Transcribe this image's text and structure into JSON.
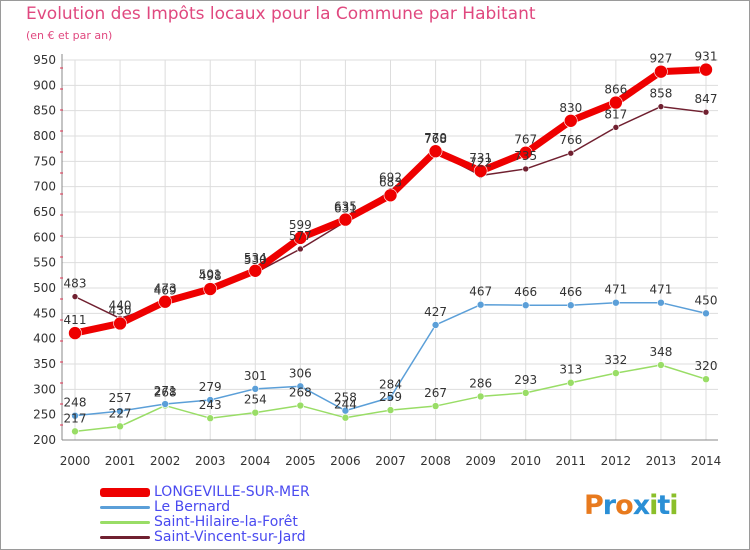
{
  "chart_data": {
    "type": "line",
    "title": "Evolution des Impôts locaux pour la Commune par Habitant",
    "subtitle": "(en € et par an)",
    "xlabel": "",
    "ylabel": "",
    "ylim": [
      200,
      950
    ],
    "yticks": [
      200,
      250,
      300,
      350,
      400,
      450,
      500,
      550,
      600,
      650,
      700,
      750,
      800,
      850,
      900,
      950
    ],
    "grid": true,
    "legend_position": "bottom-left",
    "categories": [
      "2000",
      "2001",
      "2002",
      "2003",
      "2004",
      "2005",
      "2006",
      "2007",
      "2008",
      "2009",
      "2010",
      "2011",
      "2012",
      "2013",
      "2014"
    ],
    "series": [
      {
        "name": "Saint-Vincent-sur-Jard",
        "color": "#702030",
        "values": [
          483,
          440,
          469,
          501,
          530,
          577,
          631,
          692,
          768,
          722,
          735,
          766,
          817,
          858,
          847
        ]
      },
      {
        "name": "Saint-Hilaire-la-Forêt",
        "color": "#99dd66",
        "values": [
          217,
          227,
          268,
          243,
          254,
          268,
          244,
          259,
          267,
          286,
          293,
          313,
          332,
          348,
          320
        ]
      },
      {
        "name": "Le Bernard",
        "color": "#5b9fd8",
        "values": [
          248,
          257,
          271,
          279,
          301,
          306,
          258,
          284,
          427,
          467,
          466,
          466,
          471,
          471,
          450
        ]
      },
      {
        "name": "LONGEVILLE-SUR-MER",
        "color": "#ee0000",
        "values": [
          411,
          430,
          473,
          498,
          534,
          599,
          635,
          683,
          770,
          731,
          767,
          830,
          866,
          927,
          931
        ]
      }
    ]
  },
  "legend": [
    {
      "label": "LONGEVILLE-SUR-MER",
      "color": "#ee0000"
    },
    {
      "label": "Le Bernard",
      "color": "#5b9fd8"
    },
    {
      "label": "Saint-Hilaire-la-Forêt",
      "color": "#99dd66"
    },
    {
      "label": "Saint-Vincent-sur-Jard",
      "color": "#702030"
    }
  ],
  "logo": {
    "text": "Proxiti"
  }
}
